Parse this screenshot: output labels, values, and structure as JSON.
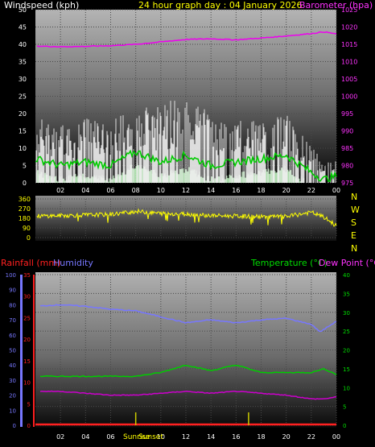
{
  "header": {
    "windspeed_label": "Windspeed (kph)",
    "title": "24 hour graph day : 04 January 2026",
    "barometer_label": "Barometer (hpa)"
  },
  "wind_dir_letters": [
    "N",
    "W",
    "S",
    "E",
    "N"
  ],
  "bottom_header": {
    "rainfall_label": "Rainfall (mm)",
    "humidity_label": "Humidity",
    "temperature_label": "Temperature (°C)",
    "dewpoint_label": "Dew Point (°C)"
  },
  "markers": {
    "sunrise": "Sunrise",
    "sunset": "Sunset"
  },
  "colors": {
    "windspeed": "#ffffff",
    "gust": "#f0f0f0",
    "avg_wind": "#00cc00",
    "wind_fill": "#c8ffc8",
    "barometer": "#ee00ee",
    "wind_dir": "#ffff00",
    "humidity": "#7777ff",
    "temperature": "#00cc00",
    "dewpoint": "#cc00cc",
    "rainfall": "#ff2020",
    "sun_marker": "#cccc00"
  },
  "chart_data": [
    {
      "type": "line",
      "name": "wind-and-barometer",
      "x_ticks": [
        "02",
        "04",
        "06",
        "08",
        "10",
        "12",
        "14",
        "16",
        "18",
        "20",
        "22",
        "00"
      ],
      "y_left_ticks": [
        "0",
        "5",
        "10",
        "15",
        "20",
        "25",
        "30",
        "35",
        "40",
        "45",
        "50"
      ],
      "y_left_label": "Windspeed (kph)",
      "y_left_range": [
        0,
        50
      ],
      "y_right_ticks": [
        "975",
        "980",
        "985",
        "990",
        "995",
        "1000",
        "1005",
        "1010",
        "1015",
        "1020",
        "1025"
      ],
      "y_right_label": "Barometer (hpa)",
      "y_right_range": [
        975,
        1025
      ],
      "x_range_hours": [
        0,
        24
      ],
      "series": [
        {
          "name": "Barometer",
          "axis": "right",
          "x": [
            0,
            2,
            4,
            6,
            8,
            10,
            12,
            14,
            16,
            18,
            20,
            22,
            23,
            24
          ],
          "y": [
            1014.5,
            1014.3,
            1014.4,
            1014.6,
            1015.0,
            1015.7,
            1016.4,
            1016.6,
            1016.3,
            1016.8,
            1017.4,
            1018.1,
            1018.6,
            1018.0
          ]
        },
        {
          "name": "Average wind",
          "axis": "left",
          "x": [
            0,
            2,
            4,
            6,
            8,
            10,
            12,
            14,
            16,
            18,
            20,
            22,
            23,
            24
          ],
          "y": [
            7,
            5,
            6,
            5,
            9,
            6,
            8,
            5,
            6,
            7,
            8,
            3,
            1,
            2
          ]
        },
        {
          "name": "Gust envelope",
          "axis": "left",
          "x": [
            0,
            2,
            4,
            6,
            8,
            10,
            12,
            14,
            16,
            18,
            20,
            22,
            23,
            24
          ],
          "y": [
            18,
            15,
            17,
            16,
            22,
            20,
            24,
            18,
            17,
            16,
            18,
            10,
            6,
            8
          ]
        }
      ]
    },
    {
      "type": "line",
      "name": "wind-direction",
      "y_ticks": [
        "0",
        "90",
        "180",
        "270",
        "360"
      ],
      "y_range": [
        0,
        360
      ],
      "x_range_hours": [
        0,
        24
      ],
      "series": [
        {
          "name": "Wind direction",
          "x": [
            0,
            2,
            4,
            6,
            8,
            10,
            12,
            14,
            16,
            18,
            20,
            22,
            23,
            24
          ],
          "y": [
            200,
            205,
            210,
            215,
            245,
            225,
            220,
            205,
            200,
            195,
            195,
            235,
            190,
            110
          ]
        }
      ]
    },
    {
      "type": "line",
      "name": "humidity-temperature-dewpoint-rainfall",
      "x_ticks": [
        "02",
        "04",
        "06",
        "10",
        "12",
        "14",
        "16",
        "18",
        "20",
        "22",
        "00"
      ],
      "y_humidity_ticks": [
        "0",
        "10",
        "20",
        "30",
        "40",
        "50",
        "60",
        "70",
        "80",
        "90",
        "100"
      ],
      "y_rain_ticks": [
        "0",
        "5",
        "10",
        "15",
        "20",
        "25",
        "30",
        "35"
      ],
      "y_temp_ticks": [
        "0",
        "5",
        "10",
        "15",
        "20",
        "25",
        "30",
        "35",
        "40"
      ],
      "x_range_hours": [
        0,
        24
      ],
      "series": [
        {
          "name": "Humidity",
          "axis": "humidity",
          "x": [
            0,
            2,
            4,
            6,
            8,
            10,
            12,
            14,
            16,
            18,
            20,
            22,
            22.7,
            24
          ],
          "y": [
            79,
            80,
            79,
            77,
            76,
            72,
            68,
            70,
            68,
            70,
            71,
            67,
            62,
            69
          ]
        },
        {
          "name": "Temperature",
          "axis": "temp",
          "x": [
            0,
            2,
            4,
            6,
            8,
            10,
            12,
            14,
            16,
            18,
            20,
            22,
            23,
            24
          ],
          "y": [
            13,
            13,
            13,
            13,
            13,
            14,
            16,
            14.5,
            16,
            14,
            14,
            14,
            15,
            13.5
          ]
        },
        {
          "name": "Dew Point",
          "axis": "temp",
          "x": [
            0,
            2,
            4,
            6,
            8,
            10,
            12,
            14,
            16,
            18,
            20,
            22,
            23,
            24
          ],
          "y": [
            9,
            9,
            8.5,
            8,
            8,
            8.5,
            9,
            8.5,
            9,
            8.5,
            8,
            7,
            7,
            7.5
          ]
        },
        {
          "name": "Rainfall",
          "axis": "rain",
          "x": [
            0,
            24
          ],
          "y": [
            0,
            0
          ]
        }
      ],
      "sunrise_hour": 8,
      "sunset_hour": 17
    }
  ]
}
